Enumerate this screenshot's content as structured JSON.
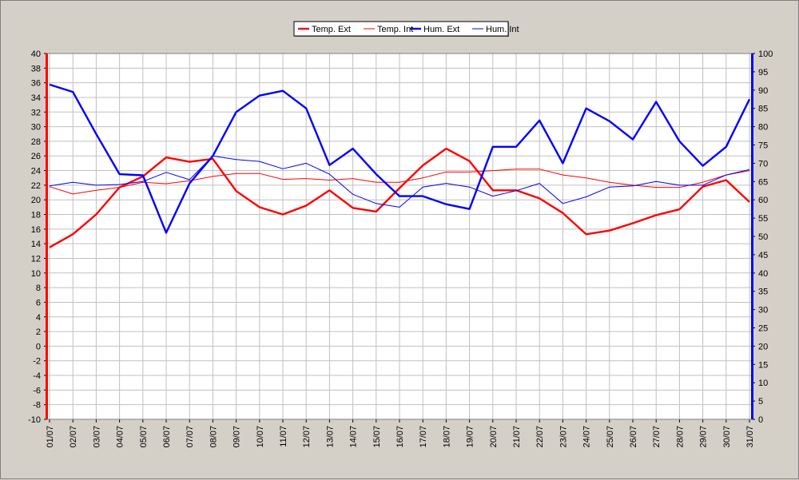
{
  "chart_data": {
    "type": "line",
    "categories": [
      "01/07",
      "02/07",
      "03/07",
      "04/07",
      "05/07",
      "06/07",
      "07/07",
      "08/07",
      "09/07",
      "10/07",
      "11/07",
      "12/07",
      "13/07",
      "14/07",
      "15/07",
      "16/07",
      "17/07",
      "18/07",
      "19/07",
      "20/07",
      "21/07",
      "22/07",
      "23/07",
      "24/07",
      "25/07",
      "26/07",
      "27/07",
      "28/07",
      "29/07",
      "30/07",
      "31/07"
    ],
    "left_axis": {
      "min": -10,
      "max": 40,
      "step": 2,
      "color": "#ff0000"
    },
    "right_axis": {
      "min": 0,
      "max": 100,
      "step": 5,
      "color": "#0000ff"
    },
    "grid": true,
    "legend_position": "top-center",
    "series": [
      {
        "name": "Temp. Ext",
        "axis": "left",
        "color": "#ff0000",
        "width": "thick",
        "values": [
          13.5,
          15.3,
          18.0,
          21.7,
          23.2,
          25.8,
          25.2,
          25.6,
          21.2,
          19.0,
          18.0,
          19.2,
          21.3,
          18.9,
          18.4,
          21.6,
          24.7,
          27.0,
          25.3,
          21.3,
          21.3,
          20.2,
          18.2,
          15.3,
          15.8,
          16.8,
          17.9,
          18.7,
          21.8,
          22.7,
          19.7
        ]
      },
      {
        "name": "Temp. Int",
        "axis": "left",
        "color": "#ff0000",
        "width": "thin",
        "values": [
          21.8,
          20.8,
          21.3,
          21.7,
          22.4,
          22.2,
          22.6,
          23.2,
          23.6,
          23.6,
          22.8,
          22.9,
          22.7,
          22.9,
          22.4,
          22.4,
          23.0,
          23.8,
          23.8,
          24.0,
          24.2,
          24.2,
          23.4,
          23.0,
          22.4,
          22.0,
          21.7,
          21.7,
          22.4,
          23.4,
          24.0
        ]
      },
      {
        "name": "Hum. Ext",
        "axis": "right",
        "color": "#0000ff",
        "width": "thick",
        "values": [
          91.5,
          89.5,
          78.0,
          67.0,
          66.7,
          51.0,
          64.5,
          72.0,
          84.0,
          88.5,
          89.8,
          85.0,
          69.5,
          74.0,
          67.0,
          61.0,
          61.0,
          58.8,
          57.5,
          74.5,
          74.5,
          81.7,
          70.0,
          85.0,
          81.5,
          76.5,
          86.8,
          76.0,
          69.3,
          74.5,
          87.5
        ]
      },
      {
        "name": "Hum. Int",
        "axis": "right",
        "color": "#0000ff",
        "width": "thin",
        "values": [
          63.8,
          64.8,
          64.0,
          64.2,
          65.0,
          67.5,
          65.5,
          72.0,
          71.0,
          70.5,
          68.5,
          70.0,
          67.0,
          61.5,
          59.0,
          58.0,
          63.5,
          64.5,
          63.5,
          61.0,
          62.5,
          64.5,
          59.0,
          60.8,
          63.5,
          63.8,
          65.0,
          64.0,
          64.0,
          66.8,
          68.3
        ]
      }
    ]
  }
}
